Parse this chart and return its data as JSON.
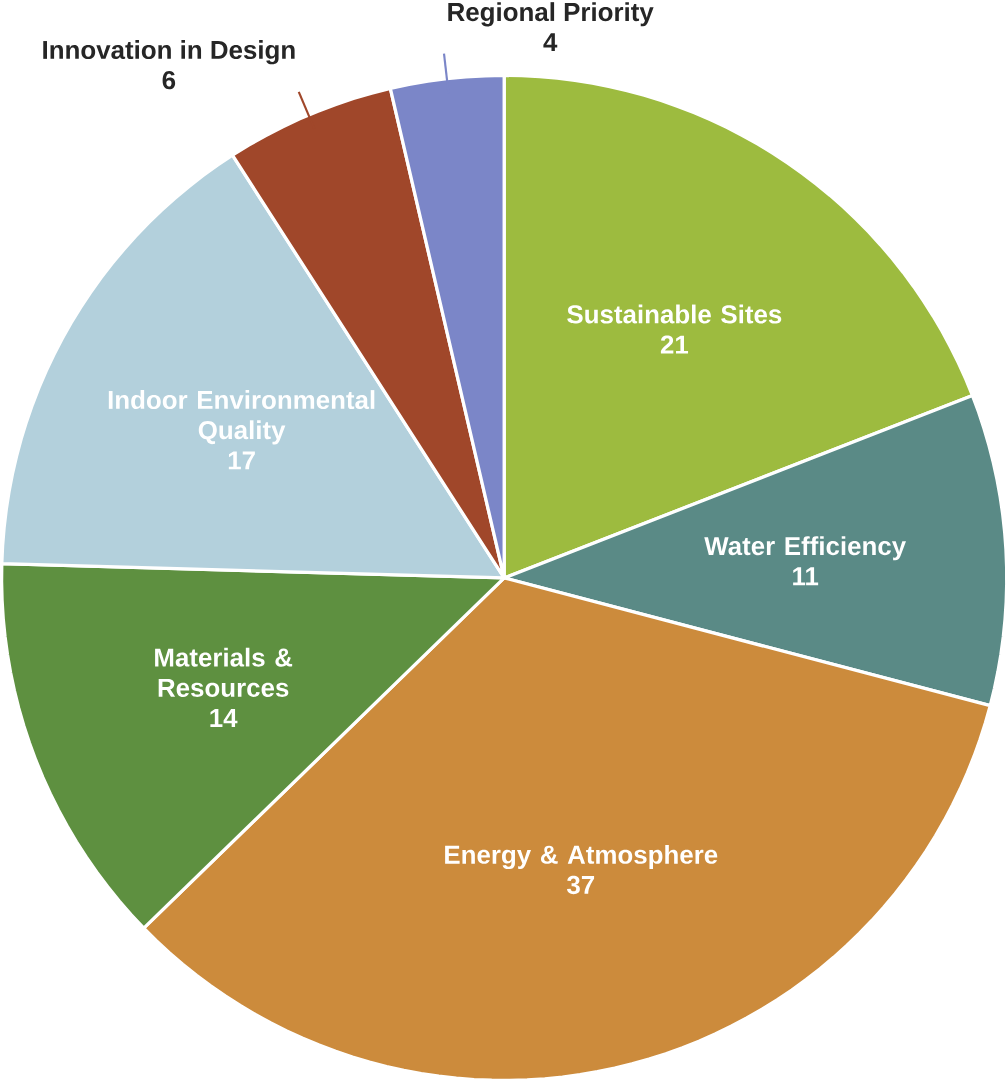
{
  "chart_data": {
    "type": "pie",
    "categories": [
      "Sustainable Sites",
      "Water Efficiency",
      "Energy & Atmosphere",
      "Materials & Resources",
      "Indoor Environmental Quality",
      "Innovation in Design",
      "Regional Priority"
    ],
    "values": [
      21,
      11,
      37,
      14,
      17,
      6,
      4
    ],
    "colors": [
      "#9dbb3f",
      "#5a8a86",
      "#cc8b3c",
      "#5e9040",
      "#b3d0dc",
      "#a0472a",
      "#7b86c8"
    ],
    "data_labels": true
  }
}
